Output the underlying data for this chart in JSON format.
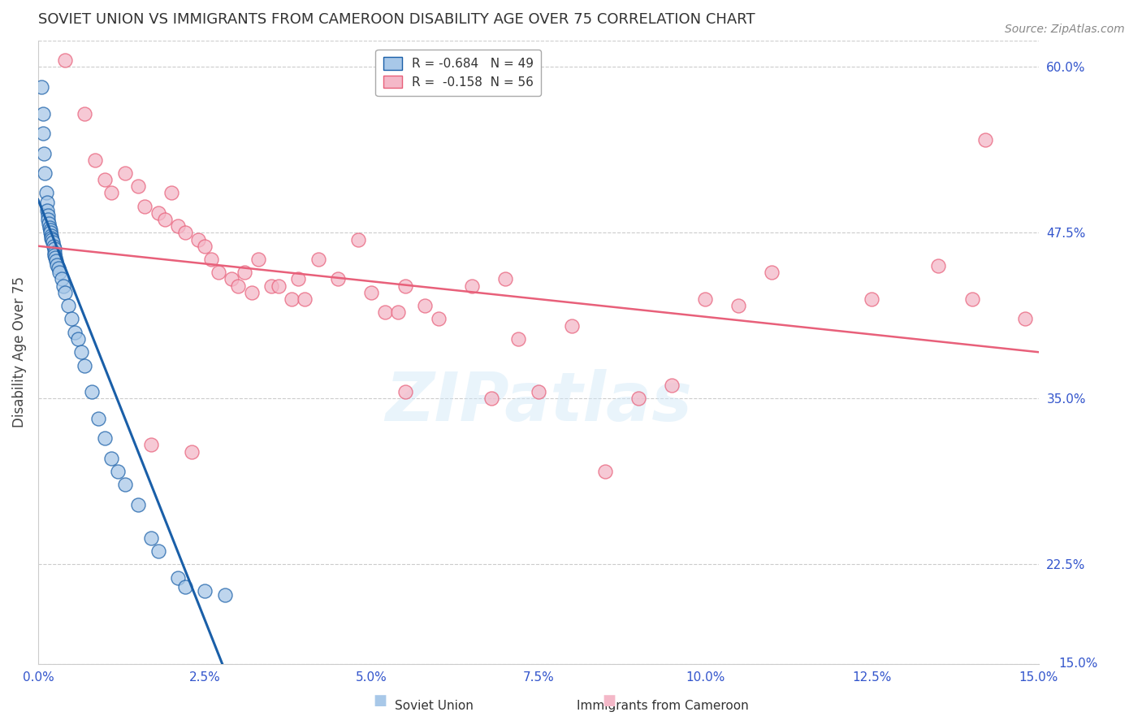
{
  "title": "SOVIET UNION VS IMMIGRANTS FROM CAMEROON DISABILITY AGE OVER 75 CORRELATION CHART",
  "source": "Source: ZipAtlas.com",
  "ylabel": "Disability Age Over 75",
  "xlim": [
    0.0,
    15.0
  ],
  "ylim": [
    15.0,
    62.0
  ],
  "xticks": [
    0.0,
    2.5,
    5.0,
    7.5,
    10.0,
    12.5,
    15.0
  ],
  "yticks_right": [
    22.5,
    35.0,
    47.5,
    60.0
  ],
  "ytick_bottom": 15.0,
  "legend_R1": "R = -0.684",
  "legend_N1": "N = 49",
  "legend_R2": "R =  -0.158",
  "legend_N2": "N = 56",
  "legend_label1": "Soviet Union",
  "legend_label2": "Immigrants from Cameroon",
  "color_blue": "#a8c8e8",
  "color_pink": "#f4b8c8",
  "color_blue_line": "#1a5fa8",
  "color_pink_line": "#e8607a",
  "color_axis_text": "#3355cc",
  "soviet_x": [
    0.05,
    0.07,
    0.08,
    0.09,
    0.1,
    0.12,
    0.13,
    0.14,
    0.15,
    0.15,
    0.16,
    0.17,
    0.18,
    0.19,
    0.2,
    0.2,
    0.21,
    0.22,
    0.23,
    0.24,
    0.25,
    0.25,
    0.26,
    0.27,
    0.28,
    0.3,
    0.32,
    0.35,
    0.38,
    0.4,
    0.45,
    0.5,
    0.55,
    0.6,
    0.65,
    0.7,
    0.8,
    0.9,
    1.0,
    1.1,
    1.2,
    1.3,
    1.5,
    1.7,
    1.8,
    2.1,
    2.2,
    2.5,
    2.8
  ],
  "soviet_y": [
    58.5,
    56.5,
    55.0,
    53.5,
    52.0,
    50.5,
    49.8,
    49.2,
    48.8,
    48.5,
    48.2,
    47.9,
    47.7,
    47.5,
    47.3,
    47.1,
    47.0,
    46.8,
    46.5,
    46.3,
    46.0,
    45.8,
    45.6,
    45.4,
    45.1,
    44.8,
    44.5,
    44.0,
    43.5,
    43.0,
    42.0,
    41.0,
    40.0,
    39.5,
    38.5,
    37.5,
    35.5,
    33.5,
    32.0,
    30.5,
    29.5,
    28.5,
    27.0,
    24.5,
    23.5,
    21.5,
    20.8,
    20.5,
    20.2
  ],
  "cameroon_x": [
    0.4,
    0.7,
    0.85,
    1.0,
    1.1,
    1.3,
    1.5,
    1.6,
    1.8,
    1.9,
    2.0,
    2.1,
    2.2,
    2.4,
    2.5,
    2.6,
    2.7,
    2.9,
    3.0,
    3.1,
    3.2,
    3.3,
    3.5,
    3.6,
    3.8,
    3.9,
    4.0,
    4.2,
    4.5,
    4.8,
    5.0,
    5.2,
    5.4,
    5.5,
    5.8,
    6.0,
    6.5,
    7.0,
    7.2,
    7.5,
    8.0,
    9.0,
    9.5,
    10.0,
    10.5,
    11.0,
    12.5,
    13.5,
    14.0,
    14.2,
    5.5,
    6.8,
    8.5,
    14.8,
    2.3,
    1.7
  ],
  "cameroon_y": [
    60.5,
    56.5,
    53.0,
    51.5,
    50.5,
    52.0,
    51.0,
    49.5,
    49.0,
    48.5,
    50.5,
    48.0,
    47.5,
    47.0,
    46.5,
    45.5,
    44.5,
    44.0,
    43.5,
    44.5,
    43.0,
    45.5,
    43.5,
    43.5,
    42.5,
    44.0,
    42.5,
    45.5,
    44.0,
    47.0,
    43.0,
    41.5,
    41.5,
    43.5,
    42.0,
    41.0,
    43.5,
    44.0,
    39.5,
    35.5,
    40.5,
    35.0,
    36.0,
    42.5,
    42.0,
    44.5,
    42.5,
    45.0,
    42.5,
    54.5,
    35.5,
    35.0,
    29.5,
    41.0,
    31.0,
    31.5
  ],
  "blue_trend_x0": 0.0,
  "blue_trend_y0": 50.0,
  "blue_trend_x1": 2.8,
  "blue_trend_y1": 14.5,
  "pink_trend_x0": 0.0,
  "pink_trend_y0": 46.5,
  "pink_trend_x1": 15.0,
  "pink_trend_y1": 38.5,
  "watermark": "ZIPatlas",
  "background_color": "#ffffff",
  "grid_color": "#cccccc"
}
